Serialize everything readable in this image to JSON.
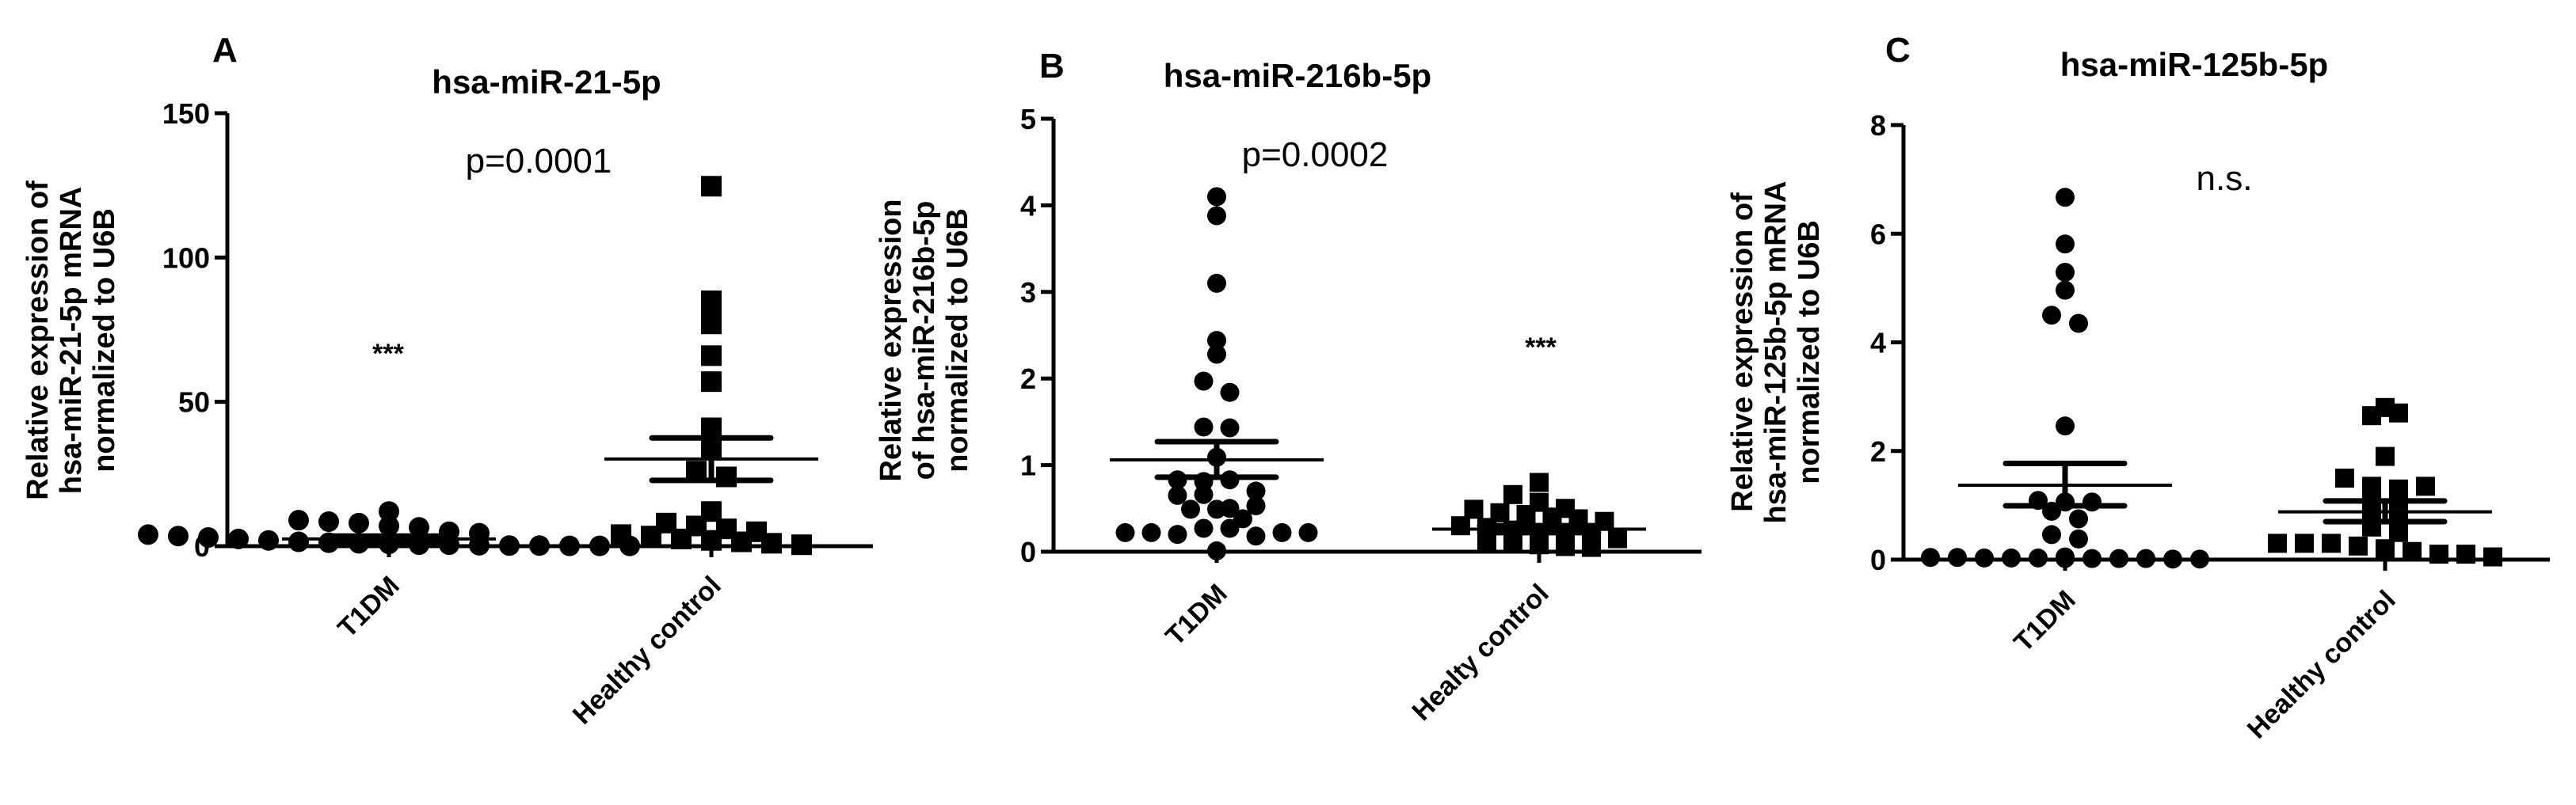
{
  "chart_data": [
    {
      "type": "scatter",
      "panel": "A",
      "title": "hsa-miR-21-5p",
      "ylabel": [
        "Relative expression of",
        "hsa-miR-21-5p mRNA",
        "normalized to U6B"
      ],
      "xlabel": "",
      "categories": [
        "T1DM",
        "Healthy control"
      ],
      "yticks": [
        0,
        50,
        100,
        150
      ],
      "ylim": [
        0,
        150
      ],
      "annotations": [
        {
          "text": "p=0.0001",
          "type": "p-value"
        },
        {
          "text": "***",
          "type": "significance",
          "category": "T1DM"
        }
      ],
      "series": [
        {
          "name": "T1DM",
          "marker": "circle",
          "values": [
            12,
            9,
            8.5,
            8,
            7,
            6.5,
            5,
            4.5,
            4,
            3.5,
            3,
            2.5,
            2,
            1.5,
            1.2,
            1,
            0.8,
            0.5,
            0.5,
            0.3,
            0.2,
            0.2,
            0.1,
            0.1,
            0.1
          ],
          "mean": 2.5,
          "sem_upper": 3.5,
          "sem_lower": 1.5
        },
        {
          "name": "Healthy control",
          "marker": "square",
          "values": [
            124.7,
            85,
            79,
            77,
            66,
            57,
            41,
            36,
            34,
            26,
            24,
            12,
            8,
            7,
            6,
            5,
            4,
            3.5,
            2.5,
            2,
            1.5,
            1,
            0.5
          ],
          "mean": 30.2,
          "sem_upper": 37.5,
          "sem_lower": 22.8
        }
      ]
    },
    {
      "type": "scatter",
      "panel": "B",
      "title": "hsa-miR-216b-5p",
      "ylabel": [
        "Relative expression",
        "of hsa-miR-216b-5p",
        "normalized to U6B"
      ],
      "xlabel": "",
      "categories": [
        "T1DM",
        "Healty control"
      ],
      "yticks": [
        0,
        1,
        2,
        3,
        4,
        5
      ],
      "ylim": [
        0,
        5
      ],
      "annotations": [
        {
          "text": "p=0.0002",
          "type": "p-value"
        },
        {
          "text": "***",
          "type": "significance",
          "category": "Healty control"
        }
      ],
      "series": [
        {
          "name": "T1DM",
          "marker": "circle",
          "values": [
            4.1,
            3.88,
            3.1,
            2.44,
            2.28,
            1.97,
            1.84,
            1.44,
            1.43,
            1.09,
            0.83,
            0.81,
            0.83,
            0.7,
            0.65,
            0.66,
            0.5,
            0.49,
            0.49,
            0.53,
            0.38,
            0.22,
            0.22,
            0.2,
            0.27,
            0.27,
            0.18,
            0.22,
            0.22,
            0.01
          ],
          "mean": 1.06,
          "sem_upper": 1.27,
          "sem_lower": 0.86
        },
        {
          "name": "Healty control",
          "marker": "square",
          "values": [
            0.8,
            0.66,
            0.57,
            0.5,
            0.49,
            0.45,
            0.43,
            0.4,
            0.38,
            0.35,
            0.3,
            0.28,
            0.25,
            0.22,
            0.2,
            0.18,
            0.15,
            0.12,
            0.1,
            0.08,
            0.06,
            0.05
          ],
          "mean": 0.26,
          "sem_upper": 0.3,
          "sem_lower": 0.22
        }
      ]
    },
    {
      "type": "scatter",
      "panel": "C",
      "title": "hsa-miR-125b-5p",
      "ylabel": [
        "Relative expression of",
        "hsa-miR-125b-5p mRNA",
        "normalized to U6B"
      ],
      "xlabel": "",
      "categories": [
        "T1DM",
        "Healthy control"
      ],
      "yticks": [
        0,
        2,
        4,
        6,
        8
      ],
      "ylim": [
        0,
        8
      ],
      "annotations": [
        {
          "text": "n.s.",
          "type": "significance"
        }
      ],
      "series": [
        {
          "name": "T1DM",
          "marker": "circle",
          "values": [
            6.67,
            5.81,
            5.29,
            4.96,
            4.5,
            4.35,
            2.46,
            1.09,
            1.06,
            1.06,
            0.89,
            0.75,
            0.46,
            0.38,
            0.05,
            0.04,
            0.04,
            0.03,
            0.03,
            0.03,
            0.02,
            0.02,
            0.02,
            0.02,
            0.01,
            0.01
          ],
          "mean": 1.37,
          "sem_upper": 1.77,
          "sem_lower": 0.99
        },
        {
          "name": "Healthy control",
          "marker": "square",
          "values": [
            2.8,
            2.65,
            2.7,
            1.9,
            1.5,
            1.35,
            1.3,
            1.35,
            1.2,
            1.1,
            0.9,
            0.75,
            0.6,
            0.5,
            0.3,
            0.3,
            0.3,
            0.25,
            0.2,
            0.15,
            0.1,
            0.1,
            0.05
          ],
          "mean": 0.88,
          "sem_upper": 1.08,
          "sem_lower": 0.7
        }
      ]
    }
  ]
}
